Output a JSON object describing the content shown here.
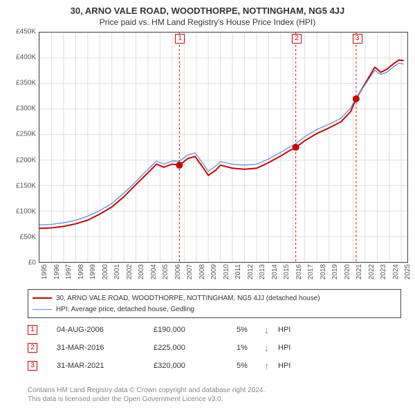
{
  "title": "30, ARNO VALE ROAD, WOODTHORPE, NOTTINGHAM, NG5 4JJ",
  "subtitle": "Price paid vs. HM Land Registry's House Price Index (HPI)",
  "chart": {
    "type": "line",
    "background_color": "#ffffff",
    "grid_color": "#dddddd",
    "axis_color": "#444444",
    "x_years": [
      1995,
      1996,
      1997,
      1998,
      1999,
      2000,
      2001,
      2002,
      2003,
      2004,
      2005,
      2006,
      2007,
      2008,
      2009,
      2010,
      2011,
      2012,
      2013,
      2014,
      2015,
      2016,
      2017,
      2018,
      2019,
      2020,
      2021,
      2022,
      2023,
      2024,
      2025
    ],
    "x_range": [
      1995,
      2025.5
    ],
    "y_ticks": [
      0,
      50000,
      100000,
      150000,
      200000,
      250000,
      300000,
      350000,
      400000,
      450000
    ],
    "y_tick_labels": [
      "£0",
      "£50K",
      "£100K",
      "£150K",
      "£200K",
      "£250K",
      "£300K",
      "£350K",
      "£400K",
      "£450K"
    ],
    "y_range": [
      0,
      450000
    ],
    "series": [
      {
        "name": "property",
        "label": "30, ARNO VALE ROAD, WOODTHORPE, NOTTINGHAM, NG5 4JJ (detached house)",
        "color": "#cc0000",
        "width": 2,
        "points": [
          [
            1995.0,
            66000
          ],
          [
            1996.0,
            67000
          ],
          [
            1997.0,
            70000
          ],
          [
            1998.0,
            75000
          ],
          [
            1999.0,
            82000
          ],
          [
            2000.0,
            94000
          ],
          [
            2001.0,
            108000
          ],
          [
            2002.0,
            128000
          ],
          [
            2003.0,
            152000
          ],
          [
            2004.0,
            175000
          ],
          [
            2004.7,
            192000
          ],
          [
            2005.3,
            186000
          ],
          [
            2006.0,
            192000
          ],
          [
            2006.6,
            190000
          ],
          [
            2007.3,
            203000
          ],
          [
            2007.9,
            207000
          ],
          [
            2008.6,
            184000
          ],
          [
            2009.0,
            170000
          ],
          [
            2009.6,
            180000
          ],
          [
            2010.0,
            190000
          ],
          [
            2011.0,
            184000
          ],
          [
            2012.0,
            182000
          ],
          [
            2013.0,
            184000
          ],
          [
            2014.0,
            195000
          ],
          [
            2015.0,
            208000
          ],
          [
            2015.7,
            218000
          ],
          [
            2016.25,
            225000
          ],
          [
            2017.0,
            238000
          ],
          [
            2018.0,
            252000
          ],
          [
            2019.0,
            263000
          ],
          [
            2020.0,
            275000
          ],
          [
            2020.8,
            295000
          ],
          [
            2021.25,
            320000
          ],
          [
            2022.0,
            350000
          ],
          [
            2022.8,
            382000
          ],
          [
            2023.3,
            372000
          ],
          [
            2023.8,
            378000
          ],
          [
            2024.3,
            388000
          ],
          [
            2024.8,
            396000
          ],
          [
            2025.2,
            395000
          ]
        ]
      },
      {
        "name": "hpi",
        "label": "HPI: Average price, detached house, Gedling",
        "color": "#5b8fd6",
        "width": 1.3,
        "points": [
          [
            1995.0,
            73000
          ],
          [
            1996.0,
            74000
          ],
          [
            1997.0,
            77000
          ],
          [
            1998.0,
            82000
          ],
          [
            1999.0,
            90000
          ],
          [
            2000.0,
            101000
          ],
          [
            2001.0,
            115000
          ],
          [
            2002.0,
            135000
          ],
          [
            2003.0,
            158000
          ],
          [
            2004.0,
            182000
          ],
          [
            2004.7,
            198000
          ],
          [
            2005.3,
            192000
          ],
          [
            2006.0,
            198000
          ],
          [
            2006.6,
            198000
          ],
          [
            2007.3,
            210000
          ],
          [
            2007.9,
            214000
          ],
          [
            2008.6,
            192000
          ],
          [
            2009.0,
            178000
          ],
          [
            2009.6,
            188000
          ],
          [
            2010.0,
            197000
          ],
          [
            2011.0,
            192000
          ],
          [
            2012.0,
            190000
          ],
          [
            2013.0,
            192000
          ],
          [
            2014.0,
            202000
          ],
          [
            2015.0,
            215000
          ],
          [
            2015.7,
            225000
          ],
          [
            2016.25,
            232000
          ],
          [
            2017.0,
            246000
          ],
          [
            2018.0,
            260000
          ],
          [
            2019.0,
            270000
          ],
          [
            2020.0,
            282000
          ],
          [
            2020.8,
            302000
          ],
          [
            2021.25,
            322000
          ],
          [
            2022.0,
            348000
          ],
          [
            2022.8,
            376000
          ],
          [
            2023.3,
            368000
          ],
          [
            2023.8,
            372000
          ],
          [
            2024.3,
            382000
          ],
          [
            2024.8,
            390000
          ],
          [
            2025.2,
            388000
          ]
        ]
      }
    ],
    "sale_markers": {
      "color": "#cc0000",
      "radius": 5,
      "vline_color": "#cc0000",
      "vline_dash": "3,3",
      "points": [
        {
          "n": 1,
          "x": 2006.6,
          "y": 190000
        },
        {
          "n": 2,
          "x": 2016.25,
          "y": 225000
        },
        {
          "n": 3,
          "x": 2021.25,
          "y": 320000
        }
      ]
    }
  },
  "legend": {
    "property": "30, ARNO VALE ROAD, WOODTHORPE, NOTTINGHAM, NG5 4JJ (detached house)",
    "hpi": "HPI: Average price, detached house, Gedling"
  },
  "events": [
    {
      "n": "1",
      "date": "04-AUG-2006",
      "price": "£190,000",
      "pct": "5%",
      "arrow": "↓",
      "arrow_color": "#888888",
      "hpi": "HPI"
    },
    {
      "n": "2",
      "date": "31-MAR-2016",
      "price": "£225,000",
      "pct": "1%",
      "arrow": "↓",
      "arrow_color": "#888888",
      "hpi": "HPI"
    },
    {
      "n": "3",
      "date": "31-MAR-2021",
      "price": "£320,000",
      "pct": "5%",
      "arrow": "↑",
      "arrow_color": "#888888",
      "hpi": "HPI"
    }
  ],
  "footer": {
    "line1": "Contains HM Land Registry data © Crown copyright and database right 2024.",
    "line2": "This data is licensed under the Open Government Licence v3.0."
  }
}
